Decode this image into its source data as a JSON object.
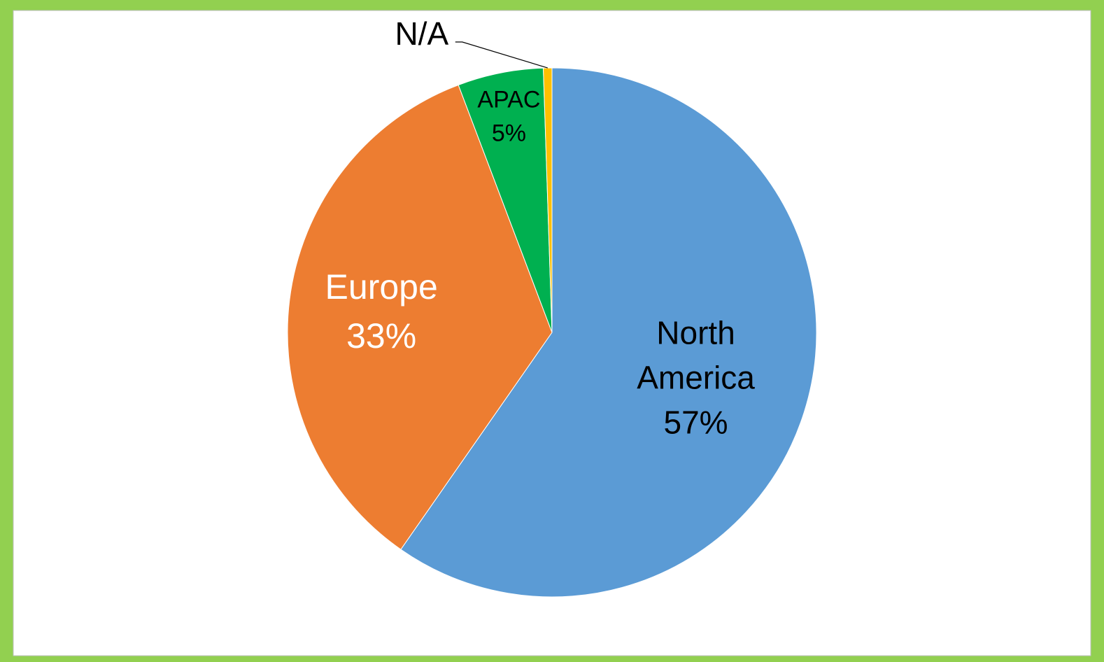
{
  "chart_data": {
    "type": "pie",
    "categories": [
      "North America",
      "Europe",
      "APAC",
      "N/A"
    ],
    "values": [
      57,
      33,
      5,
      0.5
    ],
    "value_labels": [
      "57%",
      "33%",
      "5%",
      null
    ],
    "colors": [
      "#5b9bd5",
      "#ed7d31",
      "#00b050",
      "#ffc000"
    ],
    "label_colors": [
      "#000000",
      "#ffffff",
      "#000000",
      "#000000"
    ],
    "start_angle": 0,
    "direction": "clockwise"
  }
}
